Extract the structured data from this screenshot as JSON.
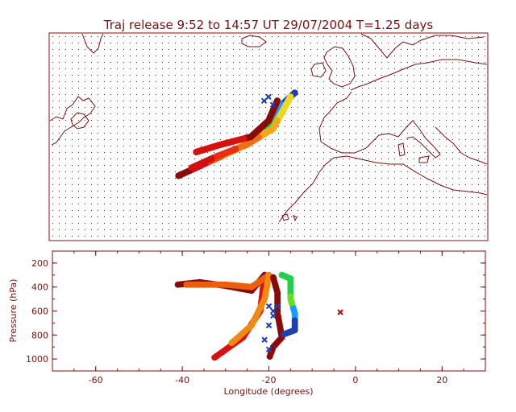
{
  "title": "Traj release 9:52 to 14:57 UT 29/07/2004    T=1.25 days",
  "colors": {
    "frame": "#7a1010",
    "grid_dot": "#7a1010",
    "release_marker": "#1f3fb0",
    "outlier_marker": "#b01010"
  },
  "chart_data": [
    {
      "type": "scatter",
      "name": "map",
      "projection": "equirectangular",
      "lon_range": [
        -70,
        30
      ],
      "lat_range": [
        20,
        72
      ],
      "grid": "dotted",
      "trajectory_bands": [
        {
          "color_role": "blue-green-yellow-orange-red",
          "points": [
            [
              -14,
              57
            ],
            [
              -17,
              54
            ],
            [
              -18,
              51
            ],
            [
              -21,
              47
            ],
            [
              -27,
              43
            ],
            [
              -35,
              39
            ],
            [
              -41,
              36
            ]
          ]
        },
        {
          "color_role": "yellow-orange-red",
          "points": [
            [
              -15,
              56
            ],
            [
              -17,
              52
            ],
            [
              -19,
              48
            ],
            [
              -25,
              44
            ],
            [
              -32,
              41
            ],
            [
              -38,
              38
            ]
          ]
        },
        {
          "color_role": "red",
          "points": [
            [
              -18,
              55
            ],
            [
              -20,
              50
            ],
            [
              -24,
              46
            ],
            [
              -31,
              44
            ],
            [
              -37,
              42
            ]
          ]
        }
      ],
      "release_markers": [
        [
          -21,
          55
        ],
        [
          -20,
          56
        ],
        [
          -19,
          54
        ]
      ]
    },
    {
      "type": "scatter",
      "name": "vertical",
      "xlabel": "Longitude  (degrees)",
      "ylabel": "Pressure  (hPa)",
      "xlim": [
        -70,
        30
      ],
      "ylim": [
        1100,
        100
      ],
      "xticks": [
        -60,
        -40,
        -20,
        0,
        20
      ],
      "yticks": [
        200,
        400,
        600,
        800,
        1000
      ],
      "trajectory_bands": [
        {
          "color_role": "red",
          "points": [
            [
              -41,
              380
            ],
            [
              -36,
              360
            ],
            [
              -30,
              390
            ],
            [
              -24,
              430
            ],
            [
              -21,
              300
            ],
            [
              -22,
              600
            ],
            [
              -26,
              820
            ],
            [
              -33,
              1000
            ]
          ]
        },
        {
          "color_role": "orange",
          "points": [
            [
              -39,
              380
            ],
            [
              -30,
              380
            ],
            [
              -24,
              400
            ],
            [
              -20,
              300
            ],
            [
              -21,
              500
            ],
            [
              -24,
              720
            ],
            [
              -29,
              880
            ]
          ]
        },
        {
          "color_role": "darkred",
          "points": [
            [
              -19,
              320
            ],
            [
              -18,
              450
            ],
            [
              -18,
              620
            ],
            [
              -17,
              820
            ],
            [
              -19,
              900
            ],
            [
              -20,
              1000
            ]
          ]
        },
        {
          "color_role": "multi",
          "points": [
            [
              -17,
              300
            ],
            [
              -15,
              330
            ],
            [
              -15,
              500
            ],
            [
              -14,
              620
            ],
            [
              -14,
              760
            ],
            [
              -17,
              800
            ]
          ]
        }
      ],
      "release_markers": [
        [
          -20,
          560
        ],
        [
          -19,
          640
        ],
        [
          -20,
          720
        ],
        [
          -21,
          840
        ],
        [
          -20,
          920
        ],
        [
          -19,
          600
        ],
        [
          -18,
          560
        ]
      ],
      "outlier_marker": [
        -3.5,
        610
      ]
    }
  ]
}
